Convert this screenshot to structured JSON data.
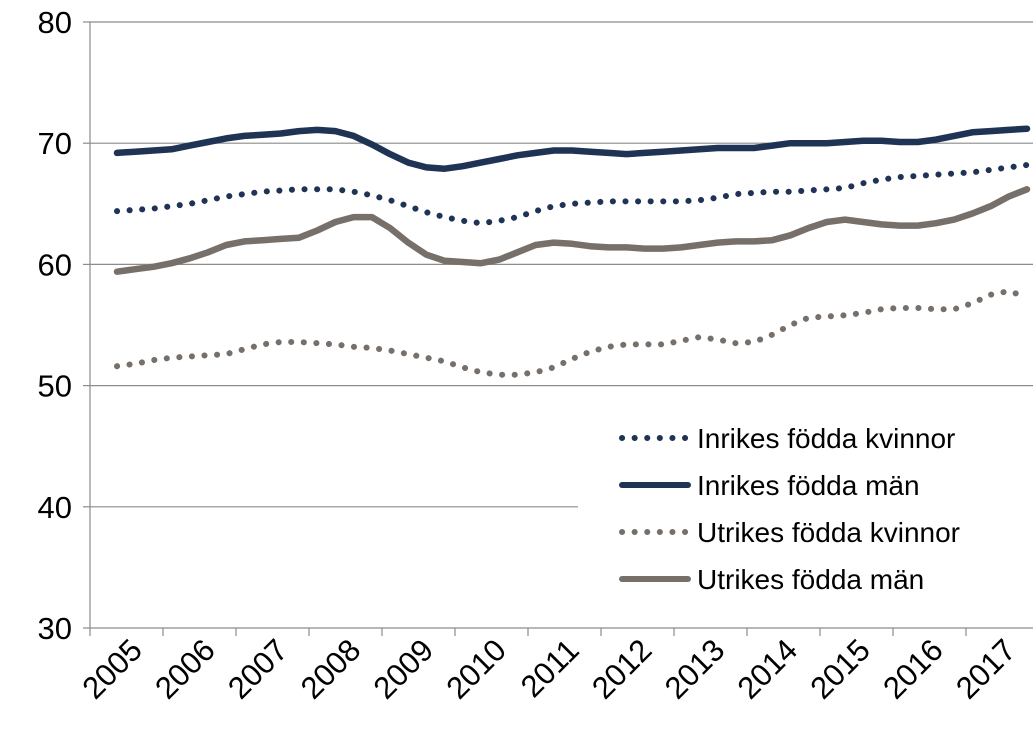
{
  "chart_data": {
    "type": "line",
    "categories": [
      "2005",
      null,
      null,
      null,
      "2006",
      null,
      null,
      null,
      "2007",
      null,
      null,
      null,
      "2008",
      null,
      null,
      null,
      "2009",
      null,
      null,
      null,
      "2010",
      null,
      null,
      null,
      "2011",
      null,
      null,
      null,
      "2012",
      null,
      null,
      null,
      "2013",
      null,
      null,
      null,
      "2014",
      null,
      null,
      null,
      "2015",
      null,
      null,
      null,
      "2016",
      null,
      null,
      null,
      "2017",
      null,
      null
    ],
    "ylim": [
      30,
      80
    ],
    "yticks": [
      30,
      40,
      50,
      60,
      70,
      80
    ],
    "grid": true,
    "legend": "bottom-right",
    "series": [
      {
        "name": "Inrikes födda kvinnor",
        "color": "#1f3354",
        "dash": "dotted",
        "values": [
          64.4,
          64.5,
          64.6,
          64.8,
          65.0,
          65.3,
          65.6,
          65.8,
          66.0,
          66.1,
          66.2,
          66.2,
          66.2,
          66.0,
          65.7,
          65.3,
          64.8,
          64.3,
          63.9,
          63.6,
          63.4,
          63.6,
          63.9,
          64.4,
          64.8,
          65.0,
          65.1,
          65.2,
          65.2,
          65.2,
          65.2,
          65.2,
          65.3,
          65.5,
          65.8,
          65.9,
          66.0,
          66.0,
          66.1,
          66.2,
          66.3,
          66.7,
          67.0,
          67.2,
          67.3,
          67.4,
          67.5,
          67.6,
          67.8,
          68.0,
          68.2
        ]
      },
      {
        "name": "Inrikes födda män",
        "color": "#1f3354",
        "dash": "solid",
        "values": [
          69.2,
          69.3,
          69.4,
          69.5,
          69.8,
          70.1,
          70.4,
          70.6,
          70.7,
          70.8,
          71.0,
          71.1,
          71.0,
          70.6,
          69.9,
          69.1,
          68.4,
          68.0,
          67.9,
          68.1,
          68.4,
          68.7,
          69.0,
          69.2,
          69.4,
          69.4,
          69.3,
          69.2,
          69.1,
          69.2,
          69.3,
          69.4,
          69.5,
          69.6,
          69.6,
          69.6,
          69.8,
          70.0,
          70.0,
          70.0,
          70.1,
          70.2,
          70.2,
          70.1,
          70.1,
          70.3,
          70.6,
          70.9,
          71.0,
          71.1,
          71.2
        ]
      },
      {
        "name": "Utrikes födda kvinnor",
        "color": "#77706a",
        "dash": "dotted",
        "values": [
          51.6,
          51.8,
          52.1,
          52.3,
          52.4,
          52.5,
          52.6,
          53.0,
          53.4,
          53.6,
          53.6,
          53.5,
          53.4,
          53.2,
          53.1,
          52.9,
          52.6,
          52.3,
          52.0,
          51.5,
          51.1,
          50.9,
          50.9,
          51.1,
          51.5,
          52.2,
          52.8,
          53.2,
          53.4,
          53.4,
          53.4,
          53.7,
          54.0,
          53.8,
          53.5,
          53.6,
          54.2,
          55.0,
          55.6,
          55.7,
          55.8,
          56.0,
          56.3,
          56.4,
          56.4,
          56.3,
          56.3,
          56.8,
          57.5,
          57.8,
          57.3
        ]
      },
      {
        "name": "Utrikes födda män",
        "color": "#77706a",
        "dash": "solid",
        "values": [
          59.4,
          59.6,
          59.8,
          60.1,
          60.5,
          61.0,
          61.6,
          61.9,
          62.0,
          62.1,
          62.2,
          62.8,
          63.5,
          63.9,
          63.9,
          63.0,
          61.8,
          60.8,
          60.3,
          60.2,
          60.1,
          60.4,
          61.0,
          61.6,
          61.8,
          61.7,
          61.5,
          61.4,
          61.4,
          61.3,
          61.3,
          61.4,
          61.6,
          61.8,
          61.9,
          61.9,
          62.0,
          62.4,
          63.0,
          63.5,
          63.7,
          63.5,
          63.3,
          63.2,
          63.2,
          63.4,
          63.7,
          64.2,
          64.8,
          65.6,
          66.2
        ]
      }
    ]
  }
}
